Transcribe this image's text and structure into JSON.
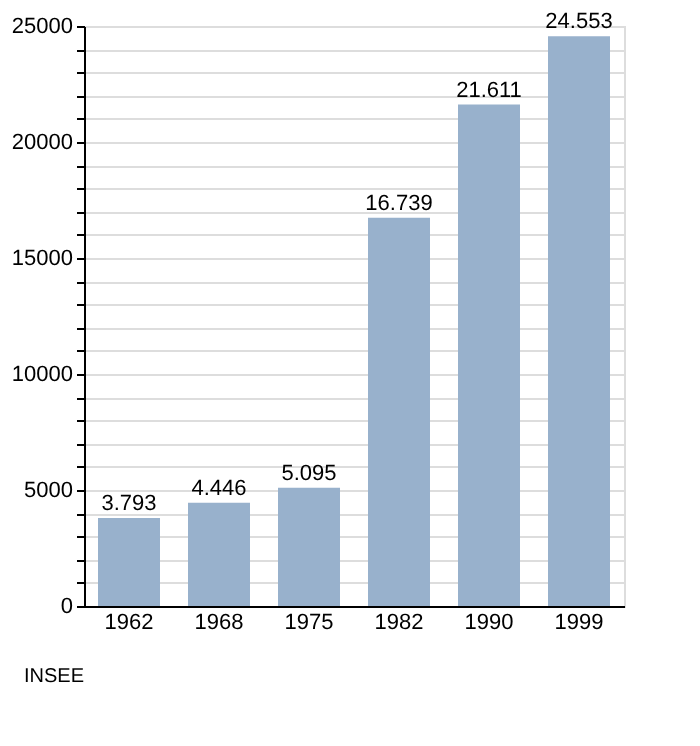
{
  "chart_data": {
    "type": "bar",
    "categories": [
      "1962",
      "1968",
      "1975",
      "1982",
      "1990",
      "1999"
    ],
    "values": [
      3793,
      4446,
      5095,
      16739,
      21611,
      24553
    ],
    "value_labels": [
      "3.793",
      "4.446",
      "5.095",
      "16.739",
      "21.611",
      "24.553"
    ],
    "color": "#98b1cc",
    "ylim": [
      0,
      25000
    ],
    "yticks": [
      0,
      {
        "value": 1000,
        "label": null
      },
      {
        "value": 2000,
        "label": null
      },
      {
        "value": 3000,
        "label": null
      },
      {
        "value": 4000,
        "label": null
      },
      5000,
      {
        "value": 6000,
        "label": null
      },
      {
        "value": 7000,
        "label": null
      },
      {
        "value": 8000,
        "label": null
      },
      {
        "value": 9000,
        "label": null
      },
      10000,
      {
        "value": 11000,
        "label": null
      },
      {
        "value": 12000,
        "label": null
      },
      {
        "value": 13000,
        "label": null
      },
      {
        "value": 14000,
        "label": null
      },
      15000,
      {
        "value": 16000,
        "label": null
      },
      {
        "value": 17000,
        "label": null
      },
      {
        "value": 18000,
        "label": null
      },
      {
        "value": 19000,
        "label": null
      },
      20000,
      {
        "value": 21000,
        "label": null
      },
      {
        "value": 22000,
        "label": null
      },
      {
        "value": 23000,
        "label": null
      },
      {
        "value": 24000,
        "label": null
      },
      25000
    ],
    "grid": "y",
    "annotations": [
      "INSEE"
    ]
  }
}
